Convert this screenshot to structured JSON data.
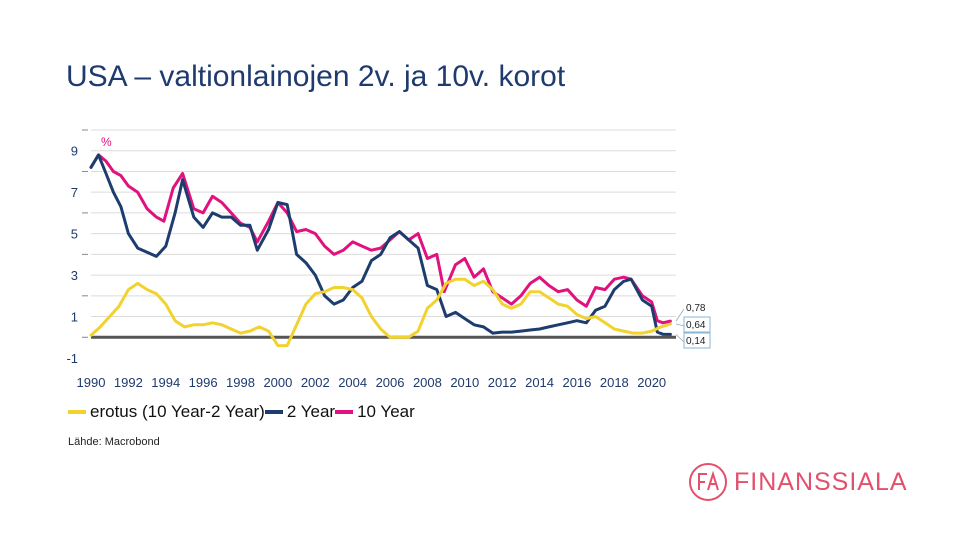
{
  "page": {
    "title": "USA – valtionlainojen 2v. ja 10v. korot"
  },
  "chart_data": {
    "type": "line",
    "unit_label": "%",
    "ylim": [
      -1,
      10
    ],
    "y_ticks": [
      9,
      7,
      5,
      3,
      1,
      -1
    ],
    "xlim": [
      1990,
      2021.3
    ],
    "x_ticks": [
      "1990",
      "1992",
      "1994",
      "1996",
      "1998",
      "2000",
      "2002",
      "2004",
      "2006",
      "2008",
      "2010",
      "2012",
      "2014",
      "2016",
      "2018",
      "2020"
    ],
    "end_labels": {
      "ten_year": "0,78",
      "spread": "0,64",
      "two_year": "0,14"
    },
    "series": [
      {
        "name": "10 Year",
        "key": "ten_year",
        "color": "#e0127e",
        "x": [
          1990,
          1990.4,
          1990.8,
          1991.2,
          1991.6,
          1992,
          1992.5,
          1993,
          1993.5,
          1993.9,
          1994.4,
          1994.9,
          1995.5,
          1996,
          1996.5,
          1997,
          1997.5,
          1998,
          1998.5,
          1998.9,
          1999.5,
          2000,
          2000.5,
          2001,
          2001.5,
          2002,
          2002.5,
          2003,
          2003.5,
          2004,
          2004.5,
          2005,
          2005.5,
          2006,
          2006.5,
          2007,
          2007.5,
          2008,
          2008.5,
          2008.9,
          2009.5,
          2010,
          2010.5,
          2011,
          2011.5,
          2012,
          2012.5,
          2013,
          2013.5,
          2014,
          2014.5,
          2015,
          2015.5,
          2016,
          2016.5,
          2017,
          2017.5,
          2018,
          2018.5,
          2018.9,
          2019.5,
          2020,
          2020.3,
          2020.6,
          2021
        ],
        "values": [
          8.2,
          8.8,
          8.5,
          8.0,
          7.8,
          7.3,
          7.0,
          6.2,
          5.8,
          5.6,
          7.2,
          7.9,
          6.2,
          6.0,
          6.8,
          6.5,
          6.0,
          5.5,
          5.3,
          4.6,
          5.6,
          6.5,
          6.0,
          5.1,
          5.2,
          5.0,
          4.4,
          4.0,
          4.2,
          4.6,
          4.4,
          4.2,
          4.3,
          4.7,
          5.1,
          4.7,
          5.0,
          3.8,
          4.0,
          2.2,
          3.5,
          3.8,
          2.9,
          3.3,
          2.2,
          1.9,
          1.6,
          2.0,
          2.6,
          2.9,
          2.5,
          2.2,
          2.3,
          1.8,
          1.5,
          2.4,
          2.3,
          2.8,
          2.9,
          2.8,
          2.0,
          1.7,
          0.8,
          0.7,
          0.78
        ]
      },
      {
        "name": "2 Year",
        "key": "two_year",
        "color": "#1d3d6e",
        "x": [
          1990,
          1990.4,
          1990.8,
          1991.2,
          1991.6,
          1992,
          1992.5,
          1993,
          1993.5,
          1994,
          1994.5,
          1994.9,
          1995.5,
          1996,
          1996.5,
          1997,
          1997.5,
          1998,
          1998.5,
          1998.9,
          1999.5,
          2000,
          2000.5,
          2001,
          2001.5,
          2002,
          2002.5,
          2003,
          2003.5,
          2004,
          2004.5,
          2005,
          2005.5,
          2006,
          2006.5,
          2007,
          2007.5,
          2008,
          2008.5,
          2009,
          2009.5,
          2010,
          2010.5,
          2011,
          2011.5,
          2012,
          2012.5,
          2013,
          2013.5,
          2014,
          2014.5,
          2015,
          2015.5,
          2016,
          2016.5,
          2017,
          2017.5,
          2018,
          2018.5,
          2018.9,
          2019.5,
          2020,
          2020.3,
          2020.6,
          2021
        ],
        "values": [
          8.2,
          8.8,
          7.9,
          7.0,
          6.3,
          5.0,
          4.3,
          4.1,
          3.9,
          4.4,
          6.0,
          7.6,
          5.8,
          5.3,
          6.0,
          5.8,
          5.8,
          5.4,
          5.4,
          4.2,
          5.2,
          6.5,
          6.4,
          4.0,
          3.6,
          3.0,
          2.0,
          1.6,
          1.8,
          2.4,
          2.7,
          3.7,
          4.0,
          4.8,
          5.1,
          4.7,
          4.3,
          2.5,
          2.3,
          1.0,
          1.2,
          0.9,
          0.6,
          0.5,
          0.2,
          0.25,
          0.25,
          0.3,
          0.35,
          0.4,
          0.5,
          0.6,
          0.7,
          0.8,
          0.7,
          1.3,
          1.5,
          2.3,
          2.7,
          2.8,
          1.8,
          1.5,
          0.25,
          0.15,
          0.14
        ]
      },
      {
        "name": "erotus (10 Year-2 Year)",
        "key": "spread",
        "color": "#f2d22e",
        "x": [
          1990,
          1990.5,
          1991,
          1991.5,
          1992,
          1992.5,
          1993,
          1993.5,
          1994,
          1994.5,
          1995,
          1995.5,
          1996,
          1996.5,
          1997,
          1997.5,
          1998,
          1998.5,
          1999,
          1999.5,
          2000,
          2000.5,
          2001,
          2001.5,
          2002,
          2002.5,
          2003,
          2003.5,
          2004,
          2004.5,
          2005,
          2005.5,
          2006,
          2006.5,
          2007,
          2007.5,
          2008,
          2008.5,
          2009,
          2009.5,
          2010,
          2010.5,
          2011,
          2011.5,
          2012,
          2012.5,
          2013,
          2013.5,
          2014,
          2014.5,
          2015,
          2015.5,
          2016,
          2016.5,
          2017,
          2017.5,
          2018,
          2018.5,
          2019,
          2019.5,
          2020,
          2020.5,
          2021
        ],
        "values": [
          0.1,
          0.5,
          1.0,
          1.5,
          2.3,
          2.6,
          2.3,
          2.1,
          1.6,
          0.8,
          0.5,
          0.6,
          0.6,
          0.7,
          0.6,
          0.4,
          0.2,
          0.3,
          0.5,
          0.3,
          -0.4,
          -0.4,
          0.6,
          1.6,
          2.1,
          2.2,
          2.4,
          2.4,
          2.3,
          1.9,
          1.0,
          0.4,
          0.0,
          0.0,
          0.0,
          0.3,
          1.4,
          1.8,
          2.6,
          2.8,
          2.8,
          2.5,
          2.7,
          2.3,
          1.6,
          1.4,
          1.6,
          2.2,
          2.2,
          1.9,
          1.6,
          1.5,
          1.1,
          0.9,
          1.0,
          0.7,
          0.4,
          0.3,
          0.2,
          0.2,
          0.3,
          0.5,
          0.64
        ]
      }
    ]
  },
  "source": "Lähde: Macrobond",
  "brand": {
    "name": "FINANSSIALA",
    "color": "#e3506b"
  }
}
